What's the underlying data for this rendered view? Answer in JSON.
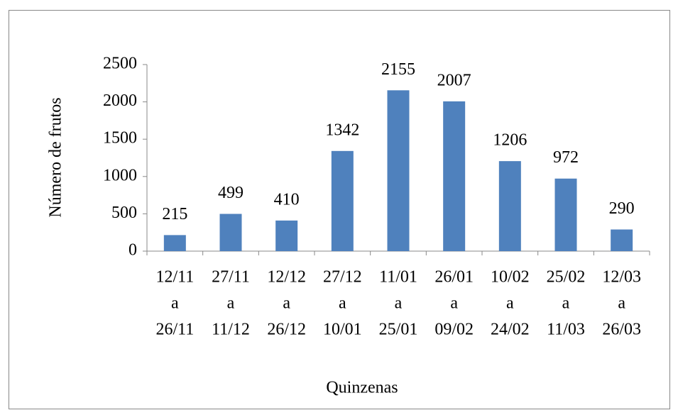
{
  "chart_data": {
    "type": "bar",
    "x_label": "Quinzenas",
    "y_label": "Número de frutos",
    "categories": [
      [
        "12/11",
        "a",
        "26/11"
      ],
      [
        "27/11",
        "a",
        "11/12"
      ],
      [
        "12/12",
        "a",
        "26/12"
      ],
      [
        "27/12",
        "a",
        "10/01"
      ],
      [
        "11/01",
        "a",
        "25/01"
      ],
      [
        "26/01",
        "a",
        "09/02"
      ],
      [
        "10/02",
        "a",
        "24/02"
      ],
      [
        "25/02",
        "a",
        "11/03"
      ],
      [
        "12/03",
        "a",
        "26/03"
      ]
    ],
    "values": [
      215,
      499,
      410,
      1342,
      2155,
      2007,
      1206,
      972,
      290
    ],
    "color": "#4f81bd",
    "ylim": [
      0,
      2500
    ],
    "yticks": [
      0,
      500,
      1000,
      1500,
      2000,
      2500
    ],
    "grid": false
  }
}
